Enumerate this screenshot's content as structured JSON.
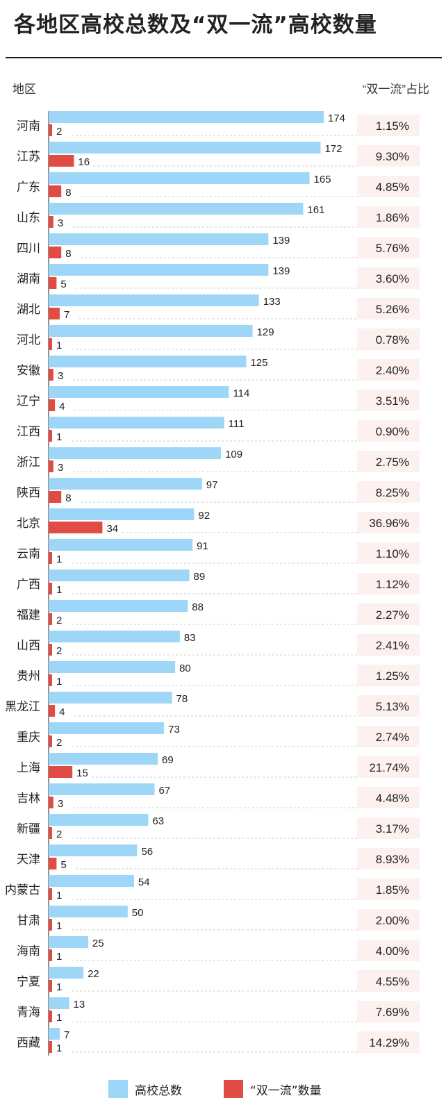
{
  "title": "各地区高校总数及“双一流”高校数量",
  "header": {
    "region_label": "地区",
    "ratio_label": "“双一流”占比"
  },
  "colors": {
    "total": "#9dd6f6",
    "double_first_class": "#e04b43",
    "ratio_bg": "#fcf1ef",
    "dashed": "#cccccc"
  },
  "legend": [
    {
      "label": "高校总数",
      "color": "#9dd6f6"
    },
    {
      "label": "“双一流”数量",
      "color": "#e04b43"
    }
  ],
  "chart_data": {
    "type": "bar",
    "orientation": "horizontal",
    "title": "各地区高校总数及“双一流”高校数量",
    "categories": [
      "河南",
      "江苏",
      "广东",
      "山东",
      "四川",
      "湖南",
      "湖北",
      "河北",
      "安徽",
      "辽宁",
      "江西",
      "浙江",
      "陕西",
      "北京",
      "云南",
      "广西",
      "福建",
      "山西",
      "贵州",
      "黑龙江",
      "重庆",
      "上海",
      "吉林",
      "新疆",
      "天津",
      "内蒙古",
      "甘肃",
      "海南",
      "宁夏",
      "青海",
      "西藏"
    ],
    "series": [
      {
        "name": "高校总数",
        "values": [
          174,
          172,
          165,
          161,
          139,
          139,
          133,
          129,
          125,
          114,
          111,
          109,
          97,
          92,
          91,
          89,
          88,
          83,
          80,
          78,
          73,
          69,
          67,
          63,
          56,
          54,
          50,
          25,
          22,
          13,
          7
        ]
      },
      {
        "name": "“双一流”数量",
        "values": [
          2,
          16,
          8,
          3,
          8,
          5,
          7,
          1,
          3,
          4,
          1,
          3,
          8,
          34,
          1,
          1,
          2,
          2,
          1,
          4,
          2,
          15,
          3,
          2,
          5,
          1,
          1,
          1,
          1,
          1,
          1
        ]
      }
    ],
    "ratio_label": "“双一流”占比",
    "ratios": [
      "1.15%",
      "9.30%",
      "4.85%",
      "1.86%",
      "5.76%",
      "3.60%",
      "5.26%",
      "0.78%",
      "2.40%",
      "3.51%",
      "0.90%",
      "2.75%",
      "8.25%",
      "36.96%",
      "1.10%",
      "1.12%",
      "2.27%",
      "2.41%",
      "1.25%",
      "5.13%",
      "2.74%",
      "21.74%",
      "4.48%",
      "3.17%",
      "8.93%",
      "1.85%",
      "2.00%",
      "4.00%",
      "4.55%",
      "7.69%",
      "14.29%"
    ],
    "xlim": [
      0,
      174
    ],
    "legend_position": "bottom"
  }
}
